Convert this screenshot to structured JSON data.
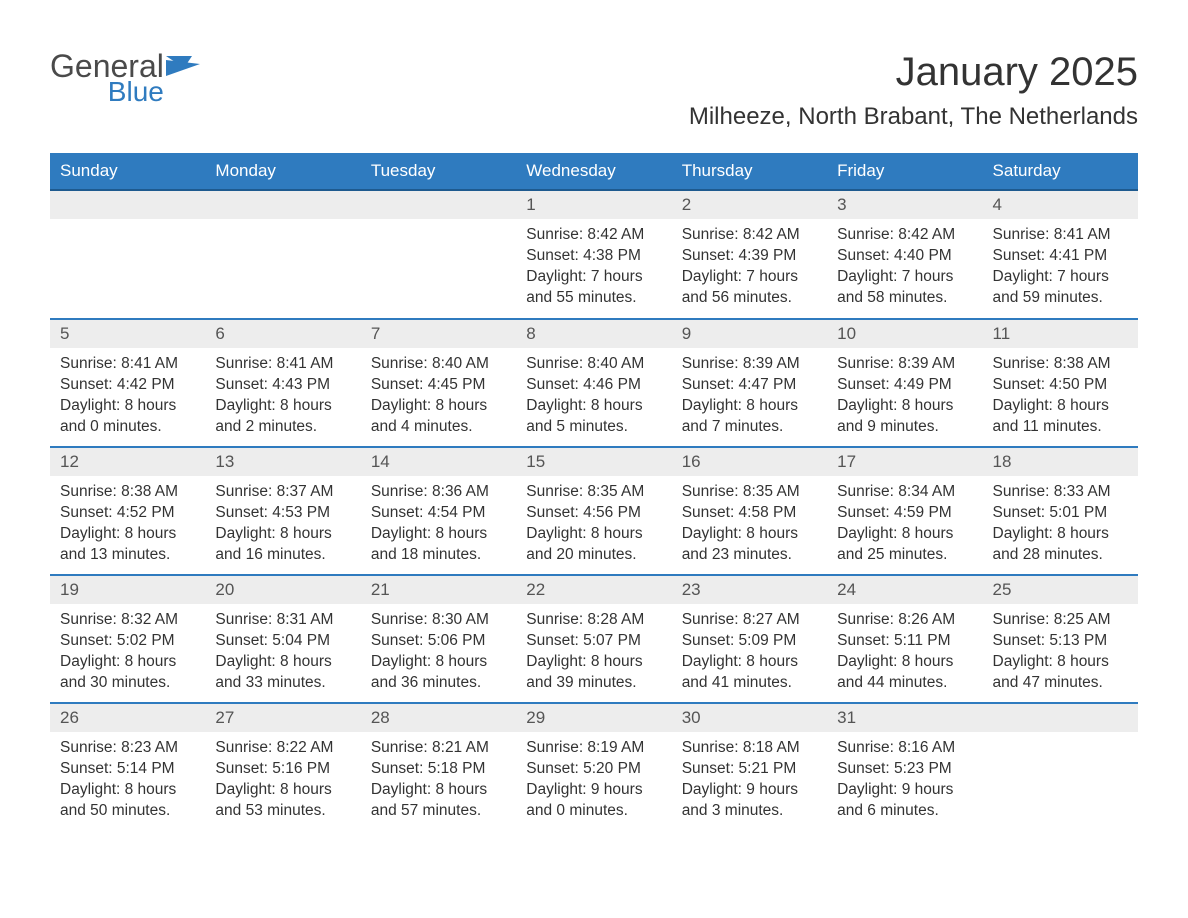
{
  "logo": {
    "general": "General",
    "blue": "Blue"
  },
  "title": "January 2025",
  "location": "Milheeze, North Brabant, The Netherlands",
  "dow": [
    "Sunday",
    "Monday",
    "Tuesday",
    "Wednesday",
    "Thursday",
    "Friday",
    "Saturday"
  ],
  "labels": {
    "sunrise": "Sunrise:",
    "sunset": "Sunset:",
    "daylight": "Daylight:"
  },
  "colors": {
    "brand_blue": "#2f7bbf",
    "header_text": "#ffffff",
    "row_bg": "#ededed",
    "body_text": "#333333"
  },
  "layout": {
    "first_day_col_index": 3,
    "rows": 5,
    "cols": 7
  },
  "typography": {
    "month_title_size": 40,
    "location_size": 24,
    "dow_size": 17,
    "daynum_size": 17,
    "data_size": 15.5
  },
  "days": {
    "1": {
      "sunrise": "8:42 AM",
      "sunset": "4:38 PM",
      "dl": "7 hours and 55 minutes."
    },
    "2": {
      "sunrise": "8:42 AM",
      "sunset": "4:39 PM",
      "dl": "7 hours and 56 minutes."
    },
    "3": {
      "sunrise": "8:42 AM",
      "sunset": "4:40 PM",
      "dl": "7 hours and 58 minutes."
    },
    "4": {
      "sunrise": "8:41 AM",
      "sunset": "4:41 PM",
      "dl": "7 hours and 59 minutes."
    },
    "5": {
      "sunrise": "8:41 AM",
      "sunset": "4:42 PM",
      "dl": "8 hours and 0 minutes."
    },
    "6": {
      "sunrise": "8:41 AM",
      "sunset": "4:43 PM",
      "dl": "8 hours and 2 minutes."
    },
    "7": {
      "sunrise": "8:40 AM",
      "sunset": "4:45 PM",
      "dl": "8 hours and 4 minutes."
    },
    "8": {
      "sunrise": "8:40 AM",
      "sunset": "4:46 PM",
      "dl": "8 hours and 5 minutes."
    },
    "9": {
      "sunrise": "8:39 AM",
      "sunset": "4:47 PM",
      "dl": "8 hours and 7 minutes."
    },
    "10": {
      "sunrise": "8:39 AM",
      "sunset": "4:49 PM",
      "dl": "8 hours and 9 minutes."
    },
    "11": {
      "sunrise": "8:38 AM",
      "sunset": "4:50 PM",
      "dl": "8 hours and 11 minutes."
    },
    "12": {
      "sunrise": "8:38 AM",
      "sunset": "4:52 PM",
      "dl": "8 hours and 13 minutes."
    },
    "13": {
      "sunrise": "8:37 AM",
      "sunset": "4:53 PM",
      "dl": "8 hours and 16 minutes."
    },
    "14": {
      "sunrise": "8:36 AM",
      "sunset": "4:54 PM",
      "dl": "8 hours and 18 minutes."
    },
    "15": {
      "sunrise": "8:35 AM",
      "sunset": "4:56 PM",
      "dl": "8 hours and 20 minutes."
    },
    "16": {
      "sunrise": "8:35 AM",
      "sunset": "4:58 PM",
      "dl": "8 hours and 23 minutes."
    },
    "17": {
      "sunrise": "8:34 AM",
      "sunset": "4:59 PM",
      "dl": "8 hours and 25 minutes."
    },
    "18": {
      "sunrise": "8:33 AM",
      "sunset": "5:01 PM",
      "dl": "8 hours and 28 minutes."
    },
    "19": {
      "sunrise": "8:32 AM",
      "sunset": "5:02 PM",
      "dl": "8 hours and 30 minutes."
    },
    "20": {
      "sunrise": "8:31 AM",
      "sunset": "5:04 PM",
      "dl": "8 hours and 33 minutes."
    },
    "21": {
      "sunrise": "8:30 AM",
      "sunset": "5:06 PM",
      "dl": "8 hours and 36 minutes."
    },
    "22": {
      "sunrise": "8:28 AM",
      "sunset": "5:07 PM",
      "dl": "8 hours and 39 minutes."
    },
    "23": {
      "sunrise": "8:27 AM",
      "sunset": "5:09 PM",
      "dl": "8 hours and 41 minutes."
    },
    "24": {
      "sunrise": "8:26 AM",
      "sunset": "5:11 PM",
      "dl": "8 hours and 44 minutes."
    },
    "25": {
      "sunrise": "8:25 AM",
      "sunset": "5:13 PM",
      "dl": "8 hours and 47 minutes."
    },
    "26": {
      "sunrise": "8:23 AM",
      "sunset": "5:14 PM",
      "dl": "8 hours and 50 minutes."
    },
    "27": {
      "sunrise": "8:22 AM",
      "sunset": "5:16 PM",
      "dl": "8 hours and 53 minutes."
    },
    "28": {
      "sunrise": "8:21 AM",
      "sunset": "5:18 PM",
      "dl": "8 hours and 57 minutes."
    },
    "29": {
      "sunrise": "8:19 AM",
      "sunset": "5:20 PM",
      "dl": "9 hours and 0 minutes."
    },
    "30": {
      "sunrise": "8:18 AM",
      "sunset": "5:21 PM",
      "dl": "9 hours and 3 minutes."
    },
    "31": {
      "sunrise": "8:16 AM",
      "sunset": "5:23 PM",
      "dl": "9 hours and 6 minutes."
    }
  }
}
